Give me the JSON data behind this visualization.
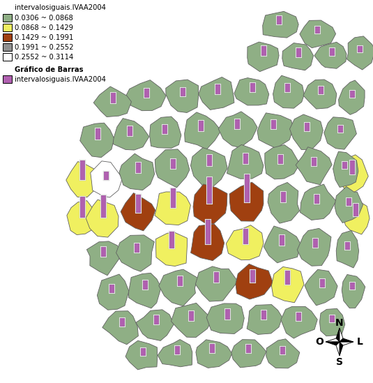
{
  "title": "intervalosiguais.IVAA2004",
  "bar_chart_label": "Gráfico de Barras",
  "bar_chart_series": "intervalosiguais.IVAA2004",
  "legend_items": [
    {
      "label": "0.0306 ~ 0.0868",
      "color": "#8faf85"
    },
    {
      "label": "0.0868 ~ 0.1429",
      "color": "#f0f060"
    },
    {
      "label": "0.1429 ~ 0.1991",
      "color": "#a04010"
    },
    {
      "label": "0.1991 ~ 0.2552",
      "color": "#909090"
    },
    {
      "label": "0.2552 ~ 0.3114",
      "color": "#ffffff"
    }
  ],
  "bar_color": "#b060b0",
  "bar_outline": "#ffffff",
  "background_color": "#ffffff",
  "map_border": "#707070",
  "mun_border": "#606060",
  "compass_labels": [
    "N",
    "S",
    "O",
    "L"
  ],
  "figsize": [
    5.35,
    5.49
  ],
  "dpi": 100
}
